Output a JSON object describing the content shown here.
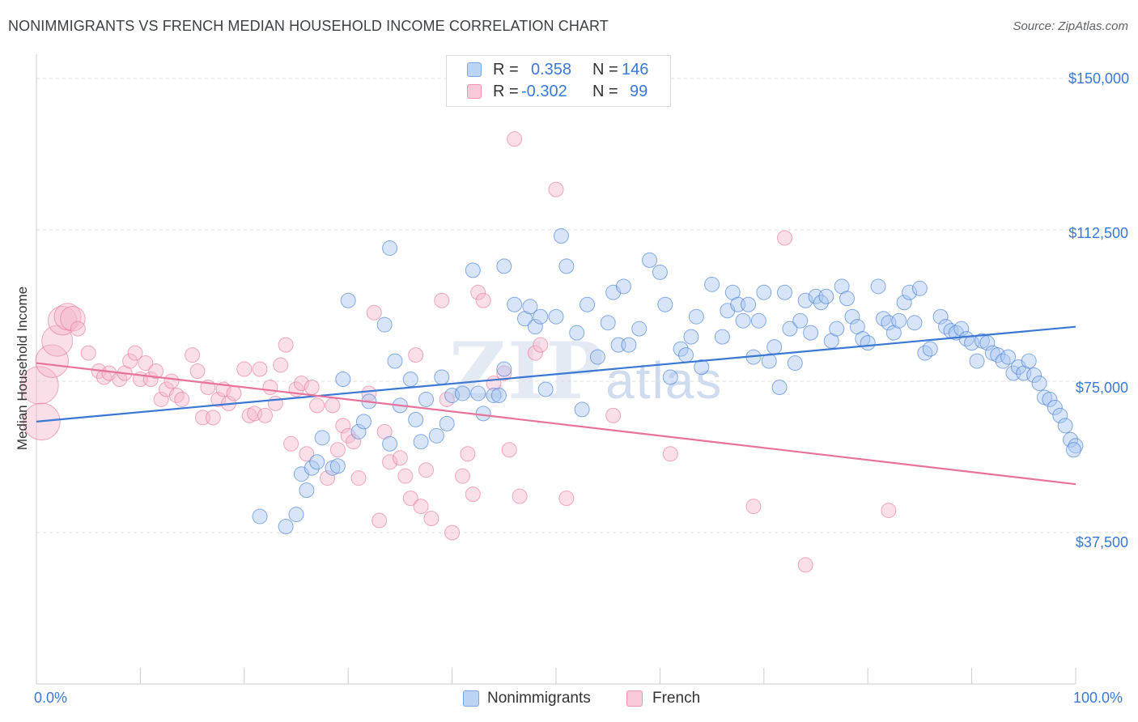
{
  "title": "NONIMMIGRANTS VS FRENCH MEDIAN HOUSEHOLD INCOME CORRELATION CHART",
  "source": "Source: ZipAtlas.com",
  "watermark": {
    "main": "ZIP",
    "sub": "atlas"
  },
  "legend": {
    "rows": [
      {
        "r_label": "R =",
        "r_value": "0.358",
        "n_label": "N =",
        "n_value": "146",
        "color": "#a8c6ef"
      },
      {
        "r_label": "R =",
        "r_value": "-0.302",
        "n_label": "N =",
        "n_value": "99",
        "color": "#f5b8cc"
      }
    ]
  },
  "chart_data": {
    "type": "scatter",
    "title": "NONIMMIGRANTS VS FRENCH MEDIAN HOUSEHOLD INCOME CORRELATION CHART",
    "xlabel": "",
    "ylabel": "Median Household Income",
    "xlim": [
      0,
      100
    ],
    "ylim": [
      0,
      150000
    ],
    "x_tick_labels": [
      "0.0%",
      "100.0%"
    ],
    "y_ticks": [
      37500,
      75000,
      112500,
      150000
    ],
    "y_tick_labels": [
      "$37,500",
      "$75,000",
      "$112,500",
      "$150,000"
    ],
    "series": [
      {
        "name": "Nonimmigrants",
        "color": "#3a78d4",
        "fill": "#a8c6ef",
        "trend": {
          "x": [
            0,
            100
          ],
          "y": [
            65000,
            88500
          ]
        },
        "points": [
          [
            21.5,
            41500
          ],
          [
            24,
            39000
          ],
          [
            25,
            42000
          ],
          [
            25.5,
            52000
          ],
          [
            26,
            48000
          ],
          [
            26.5,
            53500
          ],
          [
            27,
            55000
          ],
          [
            27.5,
            61000
          ],
          [
            28.5,
            53500
          ],
          [
            29,
            54000
          ],
          [
            29.5,
            75500
          ],
          [
            30,
            95000
          ],
          [
            31,
            62500
          ],
          [
            31.5,
            65000
          ],
          [
            32,
            70000
          ],
          [
            33.5,
            89000
          ],
          [
            34,
            108000
          ],
          [
            34,
            59500
          ],
          [
            34.5,
            80000
          ],
          [
            35,
            69000
          ],
          [
            36,
            75500
          ],
          [
            36.5,
            65500
          ],
          [
            37,
            60000
          ],
          [
            37.5,
            70500
          ],
          [
            38.5,
            61500
          ],
          [
            39,
            76000
          ],
          [
            39.5,
            64500
          ],
          [
            40,
            71500
          ],
          [
            41,
            72000
          ],
          [
            42,
            102500
          ],
          [
            42.5,
            72000
          ],
          [
            43,
            67000
          ],
          [
            44,
            71500
          ],
          [
            44.5,
            71500
          ],
          [
            45,
            103500
          ],
          [
            45,
            78000
          ],
          [
            46,
            94000
          ],
          [
            47,
            90500
          ],
          [
            47.5,
            93500
          ],
          [
            48,
            88500
          ],
          [
            48.5,
            91000
          ],
          [
            49,
            73000
          ],
          [
            50,
            91000
          ],
          [
            50.5,
            111000
          ],
          [
            51,
            103500
          ],
          [
            52,
            87000
          ],
          [
            52.5,
            68000
          ],
          [
            53,
            94000
          ],
          [
            54,
            81000
          ],
          [
            55,
            89500
          ],
          [
            55.5,
            97000
          ],
          [
            56,
            84000
          ],
          [
            56.5,
            98500
          ],
          [
            57,
            84000
          ],
          [
            58,
            88000
          ],
          [
            59,
            105000
          ],
          [
            60,
            102000
          ],
          [
            60.5,
            94000
          ],
          [
            61,
            76000
          ],
          [
            62,
            83000
          ],
          [
            62.5,
            81500
          ],
          [
            63,
            86000
          ],
          [
            63.5,
            91000
          ],
          [
            64,
            78500
          ],
          [
            65,
            99000
          ],
          [
            66,
            86000
          ],
          [
            66.5,
            92500
          ],
          [
            67,
            97000
          ],
          [
            67.5,
            94000
          ],
          [
            68,
            90000
          ],
          [
            68.5,
            94000
          ],
          [
            69,
            81000
          ],
          [
            69.5,
            90000
          ],
          [
            70,
            97000
          ],
          [
            70.5,
            80000
          ],
          [
            71,
            83500
          ],
          [
            71.5,
            73500
          ],
          [
            72,
            97000
          ],
          [
            72.5,
            88000
          ],
          [
            73,
            79500
          ],
          [
            73.5,
            90000
          ],
          [
            74,
            95000
          ],
          [
            74.5,
            87000
          ],
          [
            75,
            96000
          ],
          [
            75.5,
            94500
          ],
          [
            76,
            96000
          ],
          [
            76.5,
            85000
          ],
          [
            77,
            88000
          ],
          [
            77.5,
            98500
          ],
          [
            78,
            95500
          ],
          [
            78.5,
            91000
          ],
          [
            79,
            88500
          ],
          [
            79.5,
            85500
          ],
          [
            80,
            84500
          ],
          [
            81,
            98500
          ],
          [
            81.5,
            90500
          ],
          [
            82,
            89500
          ],
          [
            82.5,
            87000
          ],
          [
            83,
            90000
          ],
          [
            83.5,
            94500
          ],
          [
            84,
            97000
          ],
          [
            84.5,
            89500
          ],
          [
            85,
            98000
          ],
          [
            85.5,
            82000
          ],
          [
            86,
            83000
          ],
          [
            87,
            91000
          ],
          [
            87.5,
            88500
          ],
          [
            88,
            87500
          ],
          [
            88.5,
            87000
          ],
          [
            89,
            88000
          ],
          [
            89.5,
            85500
          ],
          [
            90,
            84500
          ],
          [
            90.5,
            80000
          ],
          [
            91,
            85000
          ],
          [
            91.5,
            84500
          ],
          [
            92,
            82000
          ],
          [
            92.5,
            81500
          ],
          [
            93,
            80000
          ],
          [
            93.5,
            81000
          ],
          [
            94,
            77000
          ],
          [
            94.5,
            78500
          ],
          [
            95,
            77000
          ],
          [
            95.5,
            80000
          ],
          [
            96,
            76500
          ],
          [
            96.5,
            74500
          ],
          [
            97,
            71000
          ],
          [
            97.5,
            70500
          ],
          [
            98,
            68500
          ],
          [
            98.5,
            66500
          ],
          [
            99,
            64000
          ],
          [
            99.5,
            60500
          ],
          [
            100,
            59000
          ],
          [
            99.8,
            58000
          ]
        ]
      },
      {
        "name": "French",
        "color": "#e8739a",
        "fill": "#f5b8cc",
        "trend": {
          "x": [
            0,
            100
          ],
          "y": [
            79500,
            49500
          ]
        },
        "points": [
          [
            0.3,
            74000
          ],
          [
            0.5,
            65000
          ],
          [
            1.5,
            80000
          ],
          [
            2,
            85000
          ],
          [
            2.5,
            90000
          ],
          [
            3,
            91000
          ],
          [
            3.5,
            90500
          ],
          [
            4,
            88000
          ],
          [
            5,
            82000
          ],
          [
            6,
            77500
          ],
          [
            6.5,
            76000
          ],
          [
            7,
            77000
          ],
          [
            8,
            75500
          ],
          [
            8.5,
            77000
          ],
          [
            9,
            80000
          ],
          [
            9.5,
            82000
          ],
          [
            10,
            75500
          ],
          [
            10.5,
            79500
          ],
          [
            11,
            75500
          ],
          [
            11.5,
            77500
          ],
          [
            12,
            70500
          ],
          [
            12.5,
            73000
          ],
          [
            13,
            75000
          ],
          [
            13.5,
            71500
          ],
          [
            14,
            70500
          ],
          [
            15,
            81500
          ],
          [
            15.5,
            77500
          ],
          [
            16,
            66000
          ],
          [
            16.5,
            73500
          ],
          [
            17,
            66000
          ],
          [
            17.5,
            70500
          ],
          [
            18,
            73000
          ],
          [
            18.5,
            69500
          ],
          [
            19,
            72000
          ],
          [
            20,
            78000
          ],
          [
            20.5,
            66500
          ],
          [
            21,
            67000
          ],
          [
            21.5,
            78000
          ],
          [
            22,
            66500
          ],
          [
            22.5,
            73500
          ],
          [
            23,
            69500
          ],
          [
            23.5,
            79000
          ],
          [
            24,
            84000
          ],
          [
            24.5,
            59500
          ],
          [
            25,
            73000
          ],
          [
            25.5,
            74500
          ],
          [
            26,
            57000
          ],
          [
            26.5,
            73500
          ],
          [
            27,
            69000
          ],
          [
            28,
            51000
          ],
          [
            28.5,
            69000
          ],
          [
            29,
            58000
          ],
          [
            29.5,
            64000
          ],
          [
            30,
            61500
          ],
          [
            30.5,
            60000
          ],
          [
            31,
            51000
          ],
          [
            32,
            72000
          ],
          [
            32.5,
            92000
          ],
          [
            33,
            40500
          ],
          [
            33.5,
            62500
          ],
          [
            34,
            55000
          ],
          [
            35,
            56000
          ],
          [
            35.5,
            51500
          ],
          [
            36,
            46000
          ],
          [
            36.5,
            81500
          ],
          [
            37,
            44000
          ],
          [
            37.5,
            53000
          ],
          [
            38,
            41000
          ],
          [
            39,
            95000
          ],
          [
            39.5,
            70500
          ],
          [
            40,
            37500
          ],
          [
            41,
            51500
          ],
          [
            41.5,
            57000
          ],
          [
            42,
            47000
          ],
          [
            42.5,
            97000
          ],
          [
            43,
            95000
          ],
          [
            44,
            74500
          ],
          [
            45,
            77000
          ],
          [
            45.5,
            58000
          ],
          [
            46,
            135000
          ],
          [
            46.5,
            46500
          ],
          [
            48,
            82000
          ],
          [
            48.5,
            84000
          ],
          [
            50,
            122500
          ],
          [
            51,
            46000
          ],
          [
            55.5,
            66500
          ],
          [
            61,
            57000
          ],
          [
            69,
            44000
          ],
          [
            72,
            110500
          ],
          [
            74,
            29500
          ],
          [
            82,
            43000
          ]
        ]
      }
    ],
    "legend": [
      "Nonimmigrants",
      "French"
    ]
  },
  "bottom_legend": {
    "items": [
      "Nonimmigrants",
      "French"
    ]
  }
}
